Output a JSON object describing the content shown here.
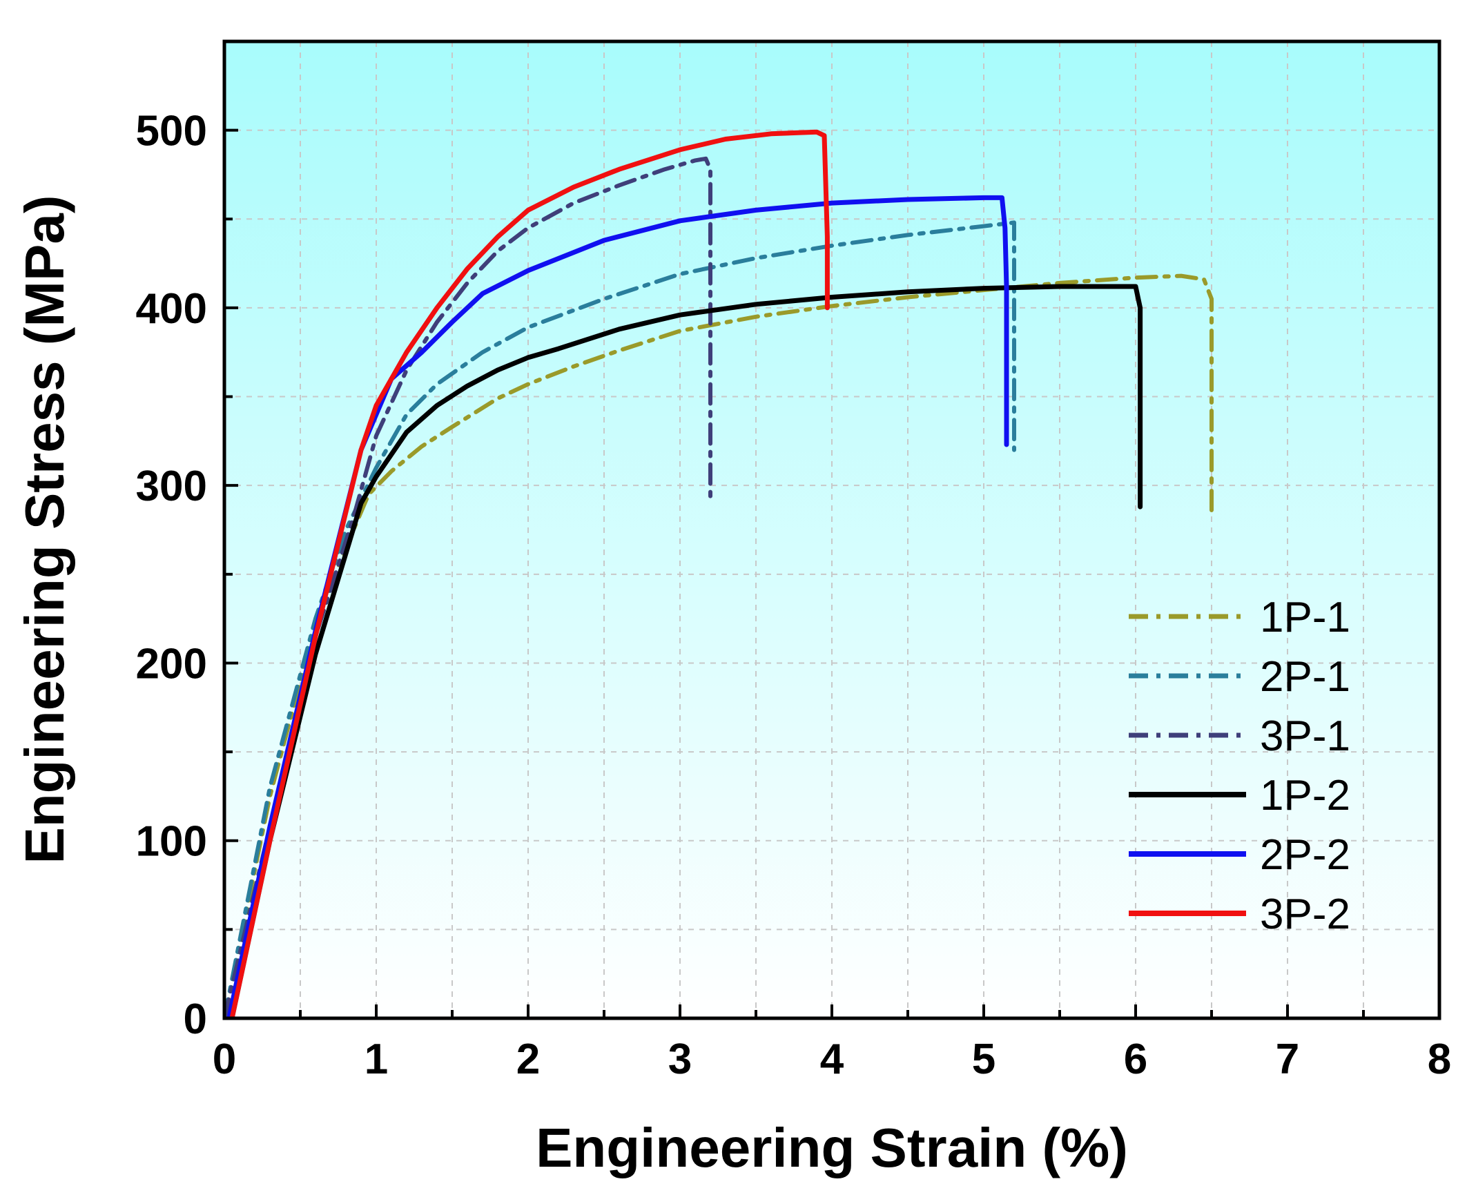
{
  "chart_data": {
    "type": "line",
    "title": "",
    "xlabel": "Engineering Strain (%)",
    "ylabel": "Engineering Stress (MPa)",
    "xlim": [
      0,
      8
    ],
    "ylim": [
      0,
      550
    ],
    "x_ticks": [
      0,
      1,
      2,
      3,
      4,
      5,
      6,
      7,
      8
    ],
    "y_ticks": [
      0,
      100,
      200,
      300,
      400,
      500
    ],
    "grid": true,
    "background": {
      "top_color": "#a8fcfc",
      "bottom_color": "#ffffff"
    },
    "legend_position": "bottom-right",
    "series": [
      {
        "name": "1P-1",
        "color": "#9a9a2a",
        "dash": "dashdot",
        "x": [
          0.0,
          0.3,
          0.6,
          0.8,
          0.95,
          1.1,
          1.3,
          1.5,
          1.8,
          2.0,
          2.3,
          2.6,
          3.0,
          3.5,
          4.0,
          4.5,
          5.0,
          5.5,
          6.0,
          6.3,
          6.45,
          6.5,
          6.5
        ],
        "y": [
          0,
          125,
          222,
          265,
          295,
          308,
          322,
          333,
          349,
          357,
          367,
          376,
          387,
          395,
          401,
          406,
          410,
          414,
          417,
          418,
          416,
          405,
          283
        ]
      },
      {
        "name": "2P-1",
        "color": "#2a7e9c",
        "dash": "dashdot",
        "x": [
          0.0,
          0.3,
          0.6,
          0.8,
          1.0,
          1.2,
          1.4,
          1.7,
          2.0,
          2.5,
          3.0,
          3.5,
          4.0,
          4.5,
          5.0,
          5.2,
          5.2
        ],
        "y": [
          0,
          130,
          225,
          275,
          310,
          340,
          357,
          375,
          389,
          405,
          419,
          428,
          435,
          441,
          446,
          448,
          320
        ]
      },
      {
        "name": "3P-1",
        "color": "#3f3f7a",
        "dash": "dashdot",
        "x": [
          0.0,
          0.3,
          0.6,
          0.85,
          1.0,
          1.2,
          1.4,
          1.6,
          1.8,
          2.0,
          2.3,
          2.6,
          2.9,
          3.1,
          3.17,
          3.2,
          3.2
        ],
        "y": [
          0,
          108,
          215,
          282,
          328,
          365,
          392,
          414,
          432,
          445,
          459,
          469,
          478,
          483,
          484,
          478,
          290
        ]
      },
      {
        "name": "1P-2",
        "color": "#000000",
        "dash": "solid",
        "x": [
          0.05,
          0.3,
          0.6,
          0.9,
          1.0,
          1.2,
          1.4,
          1.6,
          1.8,
          2.0,
          2.2,
          2.6,
          3.0,
          3.5,
          4.0,
          4.5,
          5.0,
          5.5,
          6.0,
          6.03,
          6.03
        ],
        "y": [
          0,
          100,
          205,
          290,
          305,
          330,
          345,
          356,
          365,
          372,
          377,
          388,
          396,
          402,
          406,
          409,
          411,
          412,
          412,
          400,
          288
        ]
      },
      {
        "name": "2P-2",
        "color": "#1010f0",
        "dash": "solid",
        "x": [
          0.03,
          0.3,
          0.6,
          0.9,
          1.1,
          1.3,
          1.5,
          1.7,
          2.0,
          2.5,
          3.0,
          3.5,
          4.0,
          4.5,
          5.0,
          5.12,
          5.14,
          5.15,
          5.15
        ],
        "y": [
          0,
          108,
          218,
          320,
          360,
          375,
          392,
          408,
          421,
          438,
          449,
          455,
          459,
          461,
          462,
          462,
          445,
          412,
          323
        ]
      },
      {
        "name": "3P-2",
        "color": "#f01010",
        "dash": "solid",
        "x": [
          0.05,
          0.3,
          0.6,
          0.9,
          1.0,
          1.2,
          1.4,
          1.6,
          1.8,
          2.0,
          2.3,
          2.6,
          3.0,
          3.3,
          3.6,
          3.9,
          3.95,
          3.97,
          3.97
        ],
        "y": [
          0,
          100,
          215,
          320,
          345,
          375,
          400,
          422,
          440,
          455,
          468,
          478,
          489,
          495,
          498,
          499,
          497,
          440,
          400
        ]
      }
    ]
  }
}
